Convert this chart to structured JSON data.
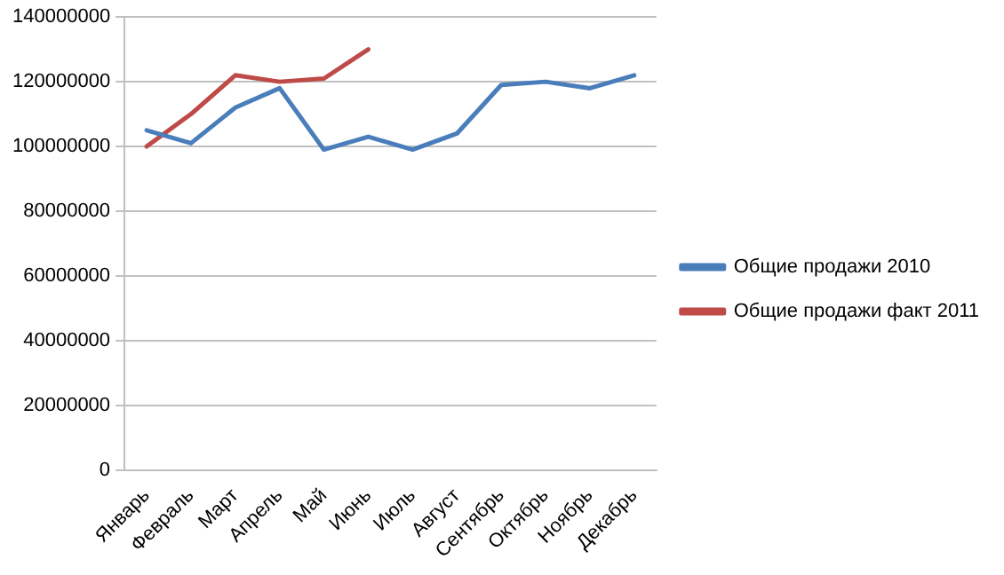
{
  "chart_data": {
    "type": "line",
    "categories": [
      "Январь",
      "Февраль",
      "Март",
      "Апрель",
      "Май",
      "Июнь",
      "Июль",
      "Август",
      "Сентябрь",
      "Октябрь",
      "Ноябрь",
      "Декабрь"
    ],
    "series": [
      {
        "name": "Общие продажи 2010",
        "color": "#4a7ebb",
        "values": [
          105000000,
          101000000,
          112000000,
          118000000,
          99000000,
          103000000,
          99000000,
          104000000,
          119000000,
          120000000,
          118000000,
          122000000
        ]
      },
      {
        "name": "Общие продажи факт 2011",
        "color": "#be4b48",
        "values": [
          100000000,
          110000000,
          122000000,
          120000000,
          121000000,
          130000000,
          null,
          null,
          null,
          null,
          null,
          null
        ]
      }
    ],
    "ylim": [
      0,
      140000000
    ],
    "yticks": [
      0,
      20000000,
      40000000,
      60000000,
      80000000,
      100000000,
      120000000,
      140000000
    ],
    "grid": "y",
    "legend": "right",
    "marker": "none",
    "line_style": "solid"
  }
}
